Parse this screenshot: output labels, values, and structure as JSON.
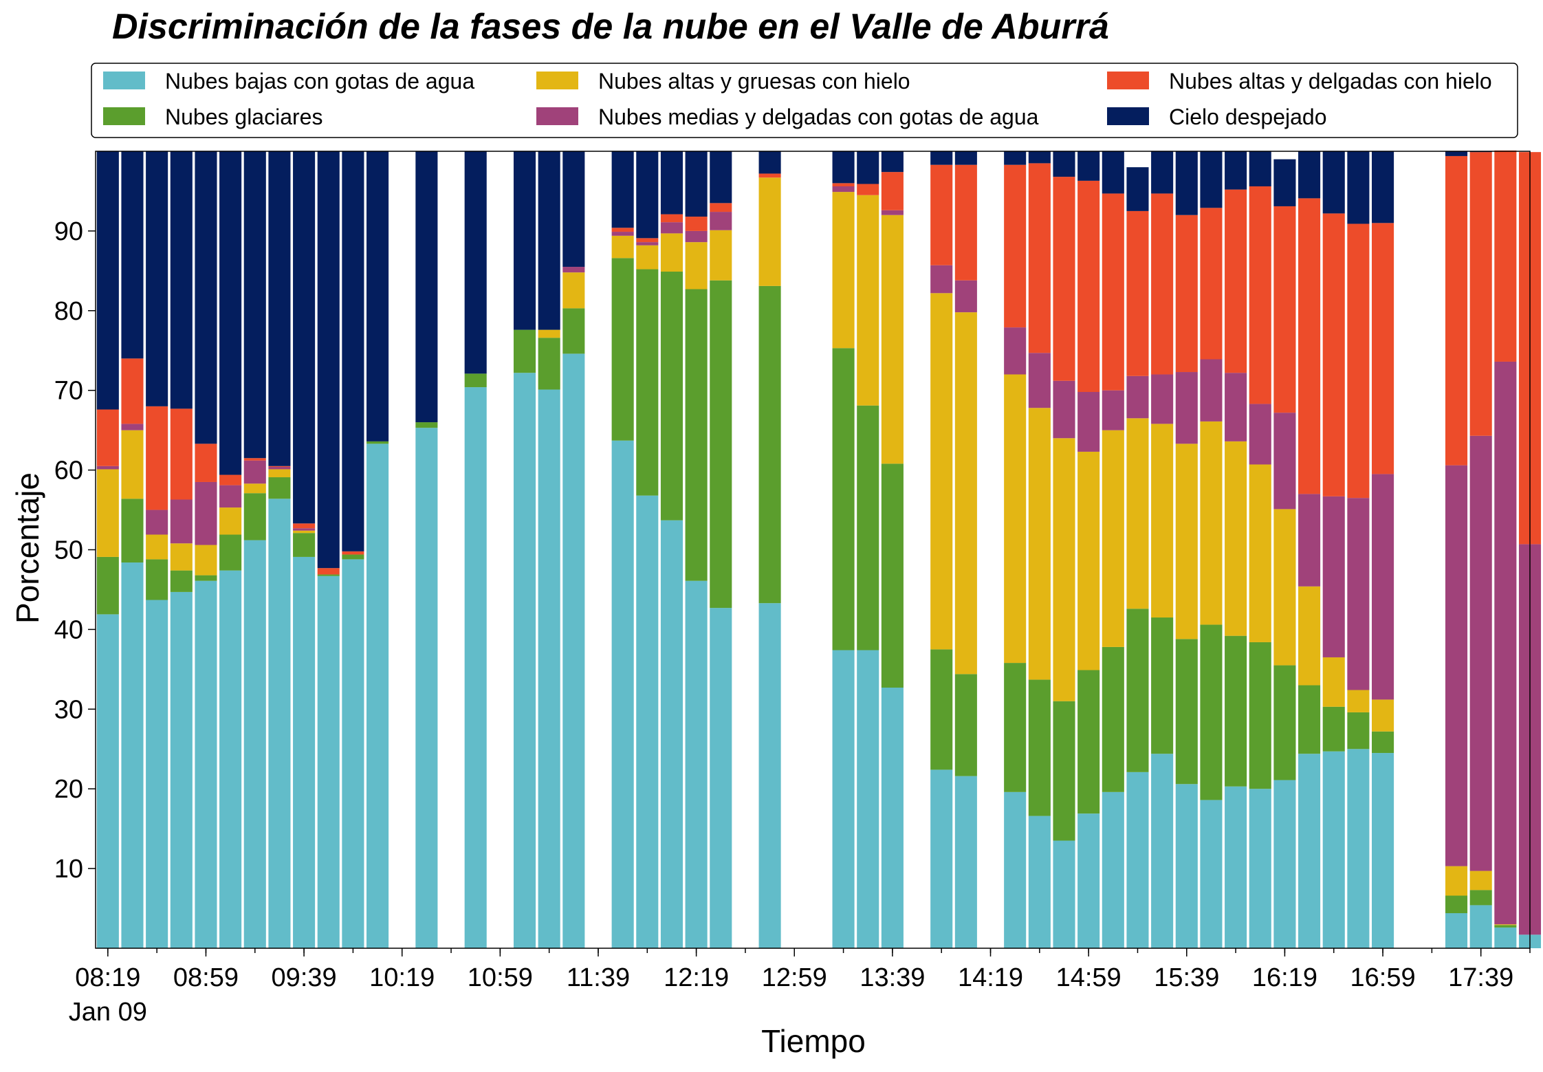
{
  "chart_data": {
    "type": "bar",
    "stacked": true,
    "title": "Discriminación de la fases de la nube en el Valle de Aburrá",
    "xlabel": "Tiempo",
    "ylabel": "Porcentaje",
    "ylim": [
      0,
      100
    ],
    "yticks": [
      10,
      20,
      30,
      40,
      50,
      60,
      70,
      80,
      90
    ],
    "grid": false,
    "legend_position": "top",
    "x_range": [
      "08:14",
      "17:59"
    ],
    "bar_interval_minutes": 10,
    "x_tick_labels": [
      "08:19",
      "08:59",
      "09:39",
      "10:19",
      "10:59",
      "11:39",
      "12:19",
      "12:59",
      "13:39",
      "14:19",
      "14:59",
      "15:39",
      "16:19",
      "16:59",
      "17:39"
    ],
    "x_tick_date_label": "Jan 09",
    "x": [
      "08:19",
      "08:29",
      "08:39",
      "08:49",
      "08:59",
      "09:09",
      "09:19",
      "09:29",
      "09:39",
      "09:49",
      "09:59",
      "10:09",
      "10:19",
      "10:29",
      "10:39",
      "10:49",
      "10:59",
      "11:09",
      "11:19",
      "11:29",
      "11:39",
      "11:49",
      "11:59",
      "12:09",
      "12:19",
      "12:29",
      "12:39",
      "12:49",
      "12:59",
      "13:09",
      "13:19",
      "13:29",
      "13:39",
      "13:49",
      "13:59",
      "14:09",
      "14:19",
      "14:29",
      "14:39",
      "14:49",
      "14:59",
      "15:09",
      "15:19",
      "15:29",
      "15:39",
      "15:49",
      "15:59",
      "16:09",
      "16:19",
      "16:29",
      "16:39",
      "16:49",
      "16:59",
      "17:09",
      "17:19",
      "17:29",
      "17:39",
      "17:49",
      "17:59"
    ],
    "series": [
      {
        "name": "Nubes bajas con gotas de agua",
        "color": "#62bcc9",
        "values": [
          41.9,
          48.4,
          43.7,
          44.7,
          46.1,
          47.4,
          51.2,
          56.4,
          49.1,
          46.7,
          48.8,
          63.3,
          null,
          65.3,
          null,
          70.4,
          null,
          72.2,
          70.1,
          74.6,
          null,
          63.7,
          56.8,
          53.7,
          46.1,
          42.7,
          null,
          43.3,
          null,
          null,
          37.4,
          37.4,
          32.7,
          null,
          22.4,
          21.6,
          null,
          19.6,
          16.6,
          13.5,
          16.9,
          19.6,
          22.1,
          24.4,
          20.6,
          18.6,
          20.3,
          20.0,
          21.1,
          24.4,
          24.7,
          25.0,
          24.5,
          null,
          null,
          4.4,
          5.4,
          2.6,
          1.7
        ]
      },
      {
        "name": "Nubes glaciares",
        "color": "#5b9e2d",
        "values": [
          7.2,
          8.0,
          5.1,
          2.7,
          0.7,
          4.5,
          5.9,
          2.7,
          3.0,
          0.2,
          0.6,
          0.3,
          null,
          0.7,
          null,
          1.7,
          null,
          5.4,
          6.5,
          5.7,
          null,
          22.9,
          28.4,
          31.2,
          36.6,
          41.1,
          null,
          39.8,
          null,
          null,
          37.9,
          30.7,
          28.1,
          null,
          15.1,
          12.8,
          null,
          16.2,
          17.1,
          17.5,
          18.0,
          18.2,
          20.5,
          17.1,
          18.2,
          22.0,
          18.9,
          18.4,
          14.4,
          8.6,
          5.6,
          4.6,
          2.7,
          null,
          null,
          2.2,
          1.9,
          0.3,
          0.0
        ]
      },
      {
        "name": "Nubes altas y gruesas con hielo",
        "color": "#e3b614",
        "values": [
          11.0,
          8.6,
          3.1,
          3.4,
          3.8,
          3.4,
          1.2,
          1.0,
          0.3,
          0.0,
          0.0,
          0.0,
          null,
          0.0,
          null,
          0.0,
          null,
          0.0,
          1.0,
          4.5,
          null,
          2.8,
          3.0,
          4.8,
          5.9,
          6.3,
          null,
          13.6,
          null,
          null,
          19.6,
          26.4,
          31.2,
          null,
          44.7,
          45.4,
          null,
          36.2,
          34.1,
          33.0,
          27.4,
          27.2,
          23.9,
          24.3,
          24.5,
          25.5,
          24.4,
          22.3,
          19.6,
          12.4,
          6.2,
          2.8,
          4.0,
          null,
          null,
          3.7,
          2.4,
          0.1,
          0.0
        ]
      },
      {
        "name": "Nubes medias y delgadas con gotas de agua",
        "color": "#a0427a",
        "values": [
          0.4,
          0.8,
          3.1,
          5.5,
          7.9,
          2.8,
          2.9,
          0.3,
          0.3,
          0.0,
          0.0,
          0.0,
          null,
          0.0,
          null,
          0.0,
          null,
          0.0,
          0.0,
          0.7,
          null,
          0.5,
          0.4,
          1.4,
          1.4,
          2.3,
          null,
          0.0,
          null,
          null,
          0.7,
          0.0,
          0.6,
          null,
          3.5,
          4.0,
          null,
          5.9,
          6.9,
          7.2,
          7.5,
          5.0,
          5.3,
          6.2,
          9.0,
          7.8,
          8.6,
          7.6,
          12.1,
          11.6,
          20.2,
          24.1,
          28.3,
          null,
          null,
          50.3,
          54.6,
          70.6,
          49.0
        ]
      },
      {
        "name": "Nubes altas y delgadas con hielo",
        "color": "#ed4c2a",
        "values": [
          7.1,
          8.2,
          13.0,
          11.4,
          4.8,
          1.3,
          0.3,
          0.1,
          0.6,
          0.8,
          0.4,
          0.0,
          null,
          0.0,
          null,
          0.0,
          null,
          0.0,
          0.0,
          0.0,
          null,
          0.5,
          0.5,
          1.0,
          1.8,
          1.1,
          null,
          0.5,
          null,
          null,
          0.4,
          1.4,
          4.8,
          null,
          12.6,
          14.5,
          null,
          20.4,
          23.8,
          25.6,
          26.5,
          24.7,
          20.7,
          22.7,
          19.7,
          19.0,
          23.0,
          27.3,
          25.9,
          37.1,
          35.5,
          34.4,
          31.5,
          null,
          null,
          38.8,
          35.6,
          26.5,
          49.2
        ]
      },
      {
        "name": "Cielo despejado",
        "color": "#041e5e",
        "values": [
          32.4,
          26.0,
          32.0,
          32.3,
          36.7,
          40.6,
          38.5,
          39.5,
          46.7,
          52.3,
          50.2,
          36.4,
          null,
          34.0,
          null,
          27.9,
          null,
          22.4,
          22.4,
          14.5,
          null,
          9.6,
          10.9,
          7.9,
          8.2,
          6.5,
          null,
          2.8,
          null,
          null,
          4.0,
          4.1,
          2.6,
          null,
          1.7,
          1.7,
          null,
          1.7,
          1.5,
          3.2,
          3.7,
          5.3,
          5.5,
          5.3,
          8.0,
          7.1,
          4.8,
          4.4,
          5.9,
          5.9,
          7.8,
          9.1,
          9.0,
          null,
          null,
          0.6,
          0.1,
          0.0,
          0.0
        ]
      }
    ]
  }
}
